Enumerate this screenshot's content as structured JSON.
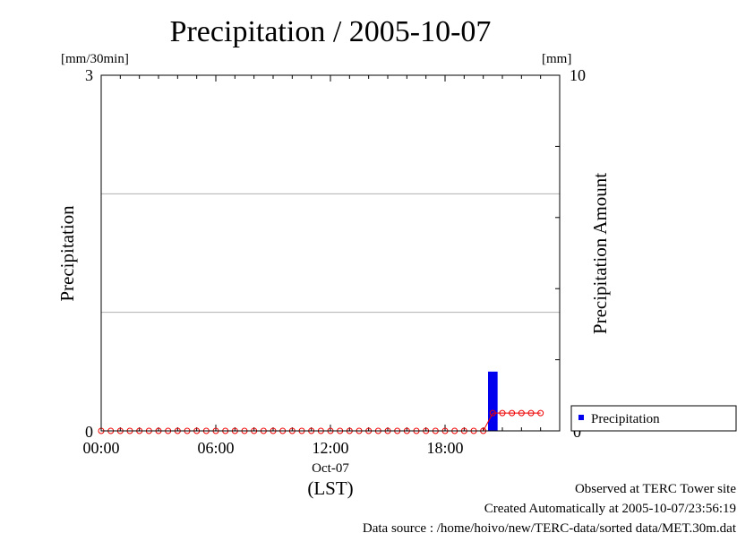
{
  "chart_data": {
    "type": "bar",
    "title": "Precipitation / 2005-10-07",
    "left_unit": "[mm/30min]",
    "right_unit": "[mm]",
    "ylabel": "Precipitation",
    "ylabel_right": "Precipitation Amount",
    "ylim": [
      0,
      3
    ],
    "ylim_right": [
      0,
      10
    ],
    "y_ticks": [
      "0",
      "3"
    ],
    "y_ticks_right": [
      "0",
      "10"
    ],
    "xlabel": "(LST)",
    "x_date_label": "Oct-07",
    "x_ticks": [
      "00:00",
      "06:00",
      "12:00",
      "18:00"
    ],
    "x_range_hours": [
      0,
      24
    ],
    "grid": true,
    "legend_position": "bottom-right",
    "series": [
      {
        "name": "Precipitation",
        "kind": "bar",
        "color": "#0000ee",
        "points": [
          {
            "t": 20.5,
            "value": 0.5
          }
        ]
      },
      {
        "kind": "line",
        "color": "#ee0000",
        "marker": "circle",
        "x": [
          0,
          0.5,
          1,
          1.5,
          2,
          2.5,
          3,
          3.5,
          4,
          4.5,
          5,
          5.5,
          6,
          6.5,
          7,
          7.5,
          8,
          8.5,
          9,
          9.5,
          10,
          10.5,
          11,
          11.5,
          12,
          12.5,
          13,
          13.5,
          14,
          14.5,
          15,
          15.5,
          16,
          16.5,
          17,
          17.5,
          18,
          18.5,
          19,
          19.5,
          20,
          20.5,
          21,
          21.5,
          22,
          22.5,
          23
        ],
        "values": [
          0,
          0,
          0,
          0,
          0,
          0,
          0,
          0,
          0,
          0,
          0,
          0,
          0,
          0,
          0,
          0,
          0,
          0,
          0,
          0,
          0,
          0,
          0,
          0,
          0,
          0,
          0,
          0,
          0,
          0,
          0,
          0,
          0,
          0,
          0,
          0,
          0,
          0,
          0,
          0,
          0,
          0.5,
          0.5,
          0.5,
          0.5,
          0.5,
          0.5
        ]
      }
    ]
  },
  "footer": {
    "line1": "Observed at TERC Tower site",
    "line2": "Created Automatically at 2005-10-07/23:56:19",
    "line3": "Data source : /home/hoivo/new/TERC-data/sorted  data/MET.30m.dat"
  }
}
